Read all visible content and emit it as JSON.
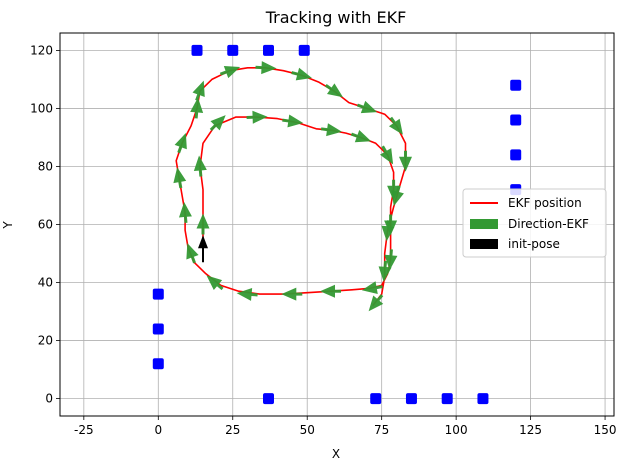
{
  "chart_data": {
    "type": "line",
    "title": "Tracking with EKF",
    "xlabel": "X",
    "ylabel": "Y",
    "xlim": [
      -33,
      153
    ],
    "ylim": [
      -6,
      126
    ],
    "xticks": [
      -25,
      0,
      25,
      50,
      75,
      100,
      125,
      150
    ],
    "yticks": [
      0,
      20,
      40,
      60,
      80,
      100,
      120
    ],
    "grid": true,
    "legend": {
      "placement": "center-right",
      "entries": [
        {
          "label": "EKF position",
          "kind": "line",
          "color": "#ff0000"
        },
        {
          "label": "Direction-EKF",
          "kind": "patch",
          "color": "#339933"
        },
        {
          "label": "init-pose",
          "kind": "patch",
          "color": "#000000"
        }
      ]
    },
    "landmarks": {
      "color": "#0000ff",
      "points": [
        [
          13,
          120
        ],
        [
          25,
          120
        ],
        [
          37,
          120
        ],
        [
          49,
          120
        ],
        [
          120,
          108
        ],
        [
          120,
          96
        ],
        [
          120,
          84
        ],
        [
          120,
          72
        ],
        [
          0,
          36
        ],
        [
          0,
          24
        ],
        [
          0,
          12
        ],
        [
          37,
          0
        ],
        [
          73,
          0
        ],
        [
          85,
          0
        ],
        [
          97,
          0
        ],
        [
          109,
          0
        ]
      ]
    },
    "ekf_path": {
      "color": "#ff0000",
      "points": [
        [
          15,
          48
        ],
        [
          15,
          55
        ],
        [
          15,
          62
        ],
        [
          15,
          72
        ],
        [
          14,
          80
        ],
        [
          15,
          88
        ],
        [
          19,
          94
        ],
        [
          26,
          97
        ],
        [
          33,
          97
        ],
        [
          40,
          96.5
        ],
        [
          47,
          95
        ],
        [
          53,
          93
        ],
        [
          58,
          92.5
        ],
        [
          63,
          91.5
        ],
        [
          68,
          90
        ],
        [
          73,
          88
        ],
        [
          77,
          84
        ],
        [
          79,
          78
        ],
        [
          79,
          72
        ],
        [
          78,
          66
        ],
        [
          78,
          60
        ],
        [
          78,
          54
        ],
        [
          78,
          48
        ],
        [
          77,
          43
        ],
        [
          75,
          39
        ],
        [
          71,
          38
        ],
        [
          65,
          37.5
        ],
        [
          58,
          37
        ],
        [
          50,
          36.5
        ],
        [
          42,
          36
        ],
        [
          34,
          36
        ],
        [
          27,
          37
        ],
        [
          21,
          39
        ],
        [
          16,
          43
        ],
        [
          12,
          47
        ],
        [
          10,
          52
        ],
        [
          9,
          58
        ],
        [
          9,
          64
        ],
        [
          8,
          70
        ],
        [
          7,
          76
        ],
        [
          6,
          82
        ],
        [
          8,
          88
        ],
        [
          11,
          94
        ],
        [
          13,
          100
        ],
        [
          14,
          106
        ],
        [
          18,
          110
        ],
        [
          24,
          113
        ],
        [
          30,
          114
        ],
        [
          36,
          114
        ],
        [
          42,
          113
        ],
        [
          48,
          111.5
        ],
        [
          54,
          109
        ],
        [
          59,
          106
        ],
        [
          64,
          102
        ],
        [
          70,
          100
        ],
        [
          76,
          98
        ],
        [
          80,
          94
        ],
        [
          83,
          88
        ],
        [
          83,
          80
        ],
        [
          81,
          73
        ],
        [
          79,
          66
        ],
        [
          77,
          58
        ],
        [
          76,
          50
        ],
        [
          76,
          42
        ],
        [
          75,
          36
        ],
        [
          72,
          32
        ]
      ]
    },
    "ekf_arrows": {
      "color": "#339933",
      "poses": [
        [
          15,
          60,
          90
        ],
        [
          14,
          80,
          95
        ],
        [
          20,
          95,
          45
        ],
        [
          33,
          97,
          2
        ],
        [
          45,
          95.5,
          -8
        ],
        [
          58,
          92.5,
          -8
        ],
        [
          68,
          90,
          -20
        ],
        [
          77,
          84,
          -60
        ],
        [
          79,
          72,
          -90
        ],
        [
          78,
          60,
          -90
        ],
        [
          78,
          48,
          -95
        ],
        [
          72,
          38,
          -170
        ],
        [
          58,
          37,
          180
        ],
        [
          45,
          36,
          180
        ],
        [
          30,
          36,
          175
        ],
        [
          19,
          40,
          140
        ],
        [
          11,
          50,
          110
        ],
        [
          9,
          64,
          95
        ],
        [
          7,
          76,
          100
        ],
        [
          8,
          88,
          70
        ],
        [
          13,
          100,
          85
        ],
        [
          14,
          106,
          70
        ],
        [
          24,
          113,
          20
        ],
        [
          36,
          114,
          -3
        ],
        [
          48,
          111.5,
          -15
        ],
        [
          59,
          106,
          -35
        ],
        [
          70,
          100,
          -20
        ],
        [
          80,
          94,
          -55
        ],
        [
          83,
          82,
          -90
        ],
        [
          80,
          70,
          -105
        ],
        [
          77,
          58,
          -95
        ],
        [
          76,
          44,
          -95
        ],
        [
          73,
          33,
          -130
        ]
      ]
    },
    "init_pose": {
      "x": 15,
      "y": 47,
      "heading_deg": 90,
      "color": "#000000"
    }
  }
}
